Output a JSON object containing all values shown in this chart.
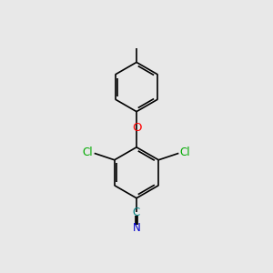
{
  "background_color": "#e8e8e8",
  "bond_color": "#000000",
  "line_width": 1.2,
  "atom_colors": {
    "C": "#008080",
    "N": "#0000cd",
    "O": "#ff0000",
    "Cl": "#00aa00"
  },
  "font_size": 8.5,
  "figsize": [
    3.0,
    3.0
  ],
  "dpi": 100
}
